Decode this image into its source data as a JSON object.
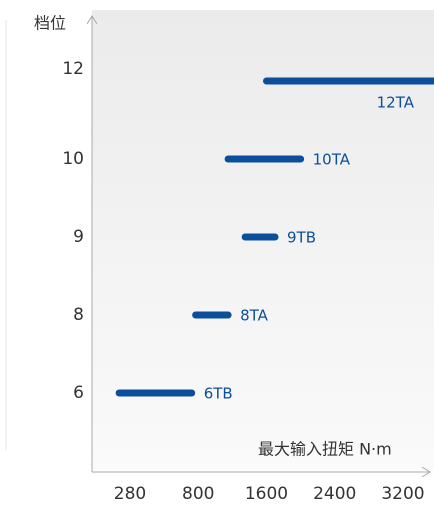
{
  "chart_data": {
    "type": "range",
    "y_title": "档位",
    "x_title": "最大输入扭矩 N·m",
    "categories": [
      "6",
      "8",
      "9",
      "10",
      "12"
    ],
    "bars": [
      {
        "label": "6TB",
        "start": 200,
        "end": 750
      },
      {
        "label": "8TA",
        "start": 780,
        "end": 1150
      },
      {
        "label": "9TB",
        "start": 1350,
        "end": 1700
      },
      {
        "label": "10TA",
        "start": 1150,
        "end": 2000
      },
      {
        "label": "12TA",
        "start": 1600,
        "end": 3600
      }
    ],
    "color": "#0b4f9c",
    "xlim": [
      0,
      3600
    ],
    "xticks": [
      280,
      800,
      1600,
      2400,
      3200
    ]
  }
}
